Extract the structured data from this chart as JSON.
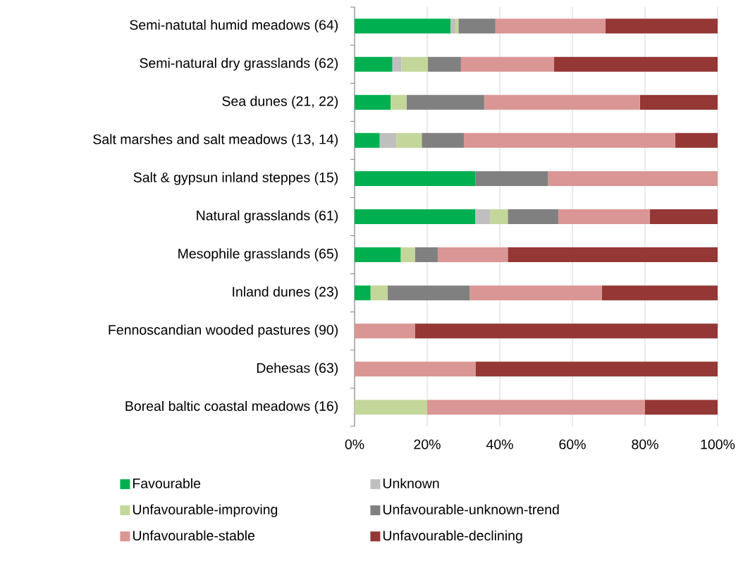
{
  "chart_data": {
    "type": "bar",
    "orientation": "horizontal",
    "stacked": true,
    "categories": [
      "Semi-natutal humid meadows (64)",
      "Semi-natural dry grasslands (62)",
      "Sea dunes (21, 22)",
      "Salt marshes and salt meadows (13, 14)",
      "Salt & gypsun inland steppes (15)",
      "Natural grasslands (61)",
      "Mesophile grasslands (65)",
      "Inland dunes (23)",
      "Fennoscandian wooded pastures (90)",
      "Dehesas (63)",
      "Boreal baltic coastal meadows (16)"
    ],
    "series": [
      {
        "name": "Favourable",
        "color": "#00b050",
        "values": [
          26.4,
          10.4,
          9.9,
          6.9,
          33.3,
          33.2,
          12.7,
          4.4,
          0,
          0,
          0
        ]
      },
      {
        "name": "Unknown",
        "color": "#bfbfbf",
        "values": [
          1.4,
          2.5,
          0,
          4.6,
          0,
          4.1,
          0,
          0,
          0,
          0,
          0
        ]
      },
      {
        "name": "Unfavourable-improving",
        "color": "#c4d79b",
        "values": [
          0.8,
          7.3,
          4.4,
          7.0,
          0,
          4.9,
          3.9,
          4.7,
          0,
          0,
          20
        ]
      },
      {
        "name": "Unfavourable-unknown-trend",
        "color": "#808080",
        "values": [
          10.2,
          9.1,
          21.4,
          11.6,
          20,
          13.9,
          6.3,
          22.6,
          0,
          0,
          0
        ]
      },
      {
        "name": "Unfavourable-stable",
        "color": "#da9694",
        "values": [
          30.3,
          25.6,
          42.9,
          58.2,
          46.7,
          25.2,
          19.3,
          36.4,
          16.6,
          33.3,
          60
        ]
      },
      {
        "name": "Unfavourable-declining",
        "color": "#953735",
        "values": [
          30.9,
          45.1,
          21.4,
          11.7,
          0,
          18.7,
          57.8,
          31.9,
          83.4,
          66.7,
          20
        ]
      }
    ],
    "xlim": [
      0,
      100
    ],
    "xticks": [
      {
        "value": 0,
        "label": "0%"
      },
      {
        "value": 20,
        "label": "20%"
      },
      {
        "value": 40,
        "label": "40%"
      },
      {
        "value": 60,
        "label": "60%"
      },
      {
        "value": 80,
        "label": "80%"
      },
      {
        "value": 100,
        "label": "100%"
      }
    ],
    "grid": "x",
    "legend": "bottom"
  }
}
